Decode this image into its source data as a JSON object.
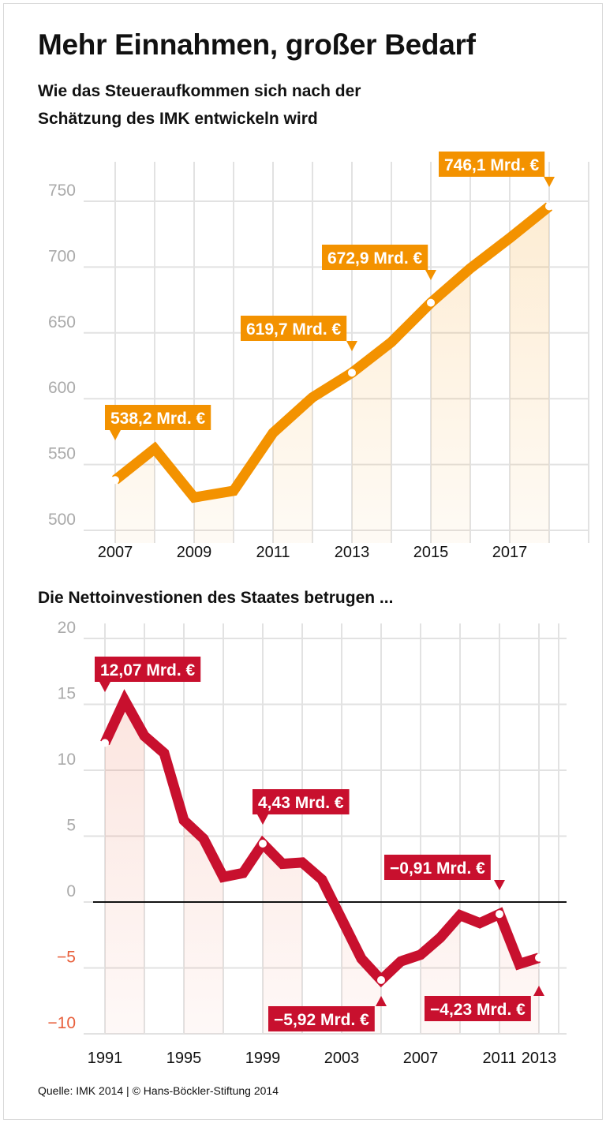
{
  "title": "Mehr Einnahmen, großer Bedarf",
  "subtitle_line1": "Wie das Steueraufkommen sich nach der",
  "subtitle_line2": "Schätzung des IMK entwickeln wird",
  "source": "Quelle: IMK 2014 | © Hans-Böckler-Stiftung 2014",
  "chart_data": [
    {
      "type": "line",
      "title": "Wie das Steueraufkommen sich nach der Schätzung des IMK entwickeln wird",
      "color": "#f39200",
      "x": [
        2007,
        2008,
        2009,
        2010,
        2011,
        2012,
        2013,
        2014,
        2015,
        2016,
        2017,
        2018
      ],
      "values": [
        538.2,
        562,
        525,
        530,
        574,
        601,
        619.7,
        643,
        672.9,
        699,
        722,
        746.1
      ],
      "ylim": [
        500,
        760
      ],
      "yticks": [
        500,
        550,
        600,
        650,
        700,
        750
      ],
      "xticks": [
        "2007",
        "2009",
        "2011",
        "2013",
        "2015",
        "2017"
      ],
      "grid": true,
      "annotations": [
        {
          "x": 2007,
          "label": "538,2 Mrd. €"
        },
        {
          "x": 2013,
          "label": "619,7 Mrd. €"
        },
        {
          "x": 2015,
          "label": "672,9 Mrd. €"
        },
        {
          "x": 2018,
          "label": "746,1 Mrd. €"
        }
      ]
    },
    {
      "type": "line",
      "title": "Die Nettoinvestionen des Staates betrugen ...",
      "color": "#c8102e",
      "x": [
        1991,
        1992,
        1993,
        1994,
        1995,
        1996,
        1997,
        1998,
        1999,
        2000,
        2001,
        2002,
        2003,
        2004,
        2005,
        2006,
        2007,
        2008,
        2009,
        2010,
        2011,
        2012,
        2013
      ],
      "values": [
        12.07,
        15.3,
        12.6,
        11.3,
        6.2,
        4.8,
        1.9,
        2.2,
        4.43,
        2.9,
        3.0,
        1.7,
        -1.3,
        -4.3,
        -5.92,
        -4.5,
        -4.0,
        -2.7,
        -1.0,
        -1.6,
        -0.91,
        -4.7,
        -4.23
      ],
      "ylim": [
        -10,
        20
      ],
      "yticks": [
        -10,
        -5,
        0,
        5,
        10,
        15,
        20
      ],
      "ytick_labels": [
        "−10",
        "−5",
        "0",
        "5",
        "10",
        "15",
        "20"
      ],
      "xticks": [
        "1991",
        "1995",
        "1999",
        "2003",
        "2007",
        "2011",
        "2013"
      ],
      "grid": true,
      "annotations": [
        {
          "x": 1991,
          "label": "12,07 Mrd. €"
        },
        {
          "x": 1999,
          "label": "4,43 Mrd. €"
        },
        {
          "x": 2011,
          "label": "−0,91 Mrd. €"
        },
        {
          "x": 2005,
          "label": "−5,92 Mrd. €"
        },
        {
          "x": 2013,
          "label": "−4,23 Mrd. €"
        }
      ]
    }
  ]
}
